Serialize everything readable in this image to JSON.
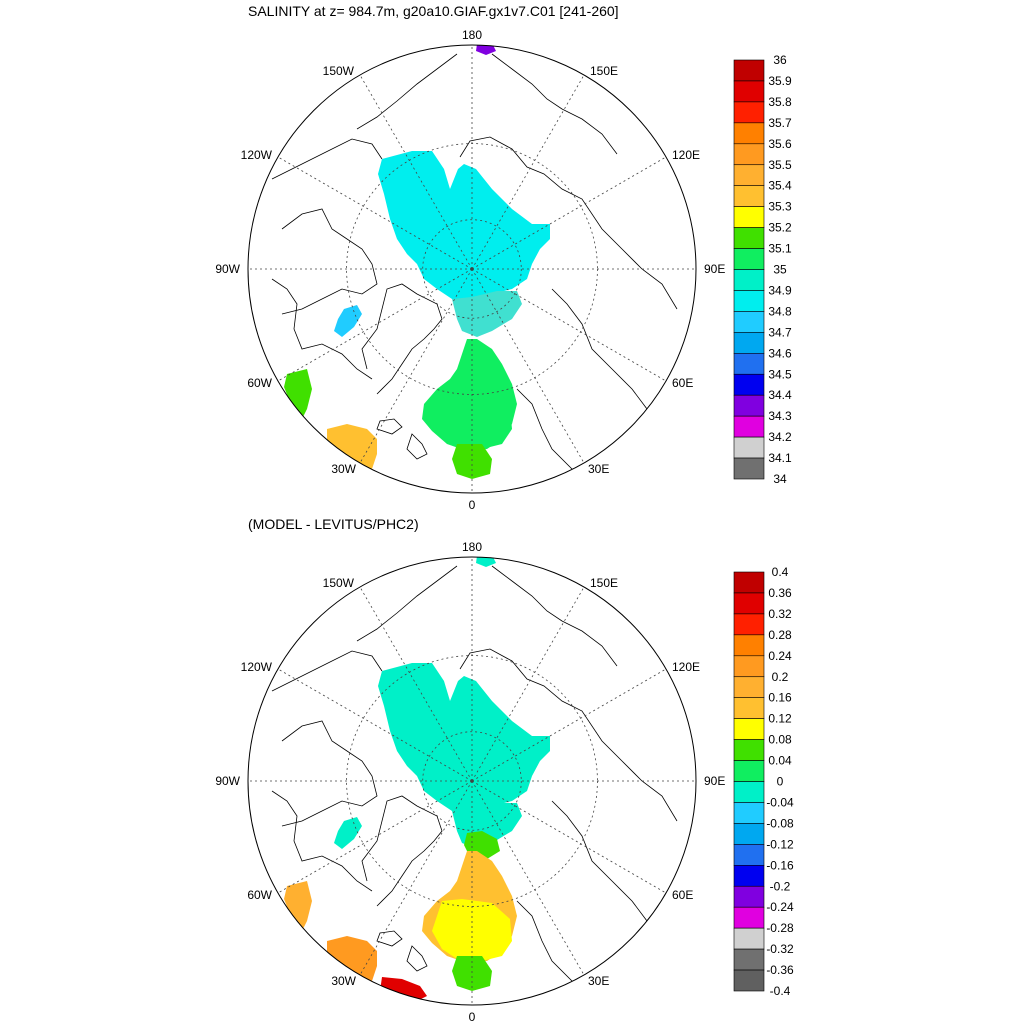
{
  "panels": [
    {
      "title": "SALINITY at z= 984.7m, g20a10.GIAF.gx1v7.C01 [241-260]",
      "colorbar": {
        "labels": [
          "36",
          "35.9",
          "35.8",
          "35.7",
          "35.6",
          "35.5",
          "35.4",
          "35.3",
          "35.2",
          "35.1",
          "35",
          "34.9",
          "34.8",
          "34.7",
          "34.6",
          "34.5",
          "34.4",
          "34.3",
          "34.2",
          "34.1",
          "34"
        ],
        "colors": [
          "#c00000",
          "#e00000",
          "#ff2000",
          "#ff8000",
          "#ff9a20",
          "#ffb030",
          "#ffc030",
          "#ffff00",
          "#40e000",
          "#10ee60",
          "#00f0c8",
          "#00eeee",
          "#20ccff",
          "#00a8f0",
          "#2070f0",
          "#0000f0",
          "#8000e0",
          "#e000e0",
          "#d0d0d0",
          "#707070"
        ]
      },
      "regions": [
        {
          "name": "central-arctic",
          "color": "#00eeee"
        },
        {
          "name": "eurasian-deep",
          "color": "#40e0d0"
        },
        {
          "name": "nordic-seas",
          "color": "#10ee60"
        },
        {
          "name": "norwegian-sea",
          "color": "#10ee60"
        },
        {
          "name": "iceland-shelf",
          "color": "#40e000"
        },
        {
          "name": "atlantic-south",
          "color": "#ffc030"
        },
        {
          "name": "labrador",
          "color": "#40e000"
        },
        {
          "name": "baffin",
          "color": "#20ccff"
        },
        {
          "name": "bering-dot",
          "color": "#8000e0"
        }
      ]
    },
    {
      "title": "(MODEL - LEVITUS/PHC2)",
      "colorbar": {
        "labels": [
          "0.4",
          "0.36",
          "0.32",
          "0.28",
          "0.24",
          "0.2",
          "0.16",
          "0.12",
          "0.08",
          "0.04",
          "0",
          "-0.04",
          "-0.08",
          "-0.12",
          "-0.16",
          "-0.2",
          "-0.24",
          "-0.28",
          "-0.32",
          "-0.36",
          "-0.4"
        ],
        "colors": [
          "#c00000",
          "#e00000",
          "#ff2000",
          "#ff8000",
          "#ff9a20",
          "#ffb030",
          "#ffc030",
          "#ffff00",
          "#40e000",
          "#10ee60",
          "#00f0c8",
          "#20ccff",
          "#00a8f0",
          "#2070f0",
          "#0000f0",
          "#8000e0",
          "#e000e0",
          "#d0d0d0",
          "#707070",
          "#606060"
        ]
      },
      "regions": [
        {
          "name": "central-arctic",
          "color": "#00f0c8"
        },
        {
          "name": "eurasian-deep",
          "color": "#00f0c8"
        },
        {
          "name": "fram-strait",
          "color": "#40e000"
        },
        {
          "name": "nordic-seas",
          "color": "#ffc030"
        },
        {
          "name": "norwegian-sea",
          "color": "#ffff00"
        },
        {
          "name": "iceland-shelf",
          "color": "#40e000"
        },
        {
          "name": "atlantic-south",
          "color": "#ff9a20"
        },
        {
          "name": "atlantic-south-red",
          "color": "#e00000"
        },
        {
          "name": "labrador",
          "color": "#ffb030"
        },
        {
          "name": "baffin",
          "color": "#00f0c8"
        },
        {
          "name": "bering-dot",
          "color": "#00f0c8"
        }
      ]
    }
  ],
  "longitude_labels": [
    "180",
    "150E",
    "120E",
    "90E",
    "60E",
    "30E",
    "0",
    "30W",
    "60W",
    "90W",
    "120W",
    "150W"
  ]
}
